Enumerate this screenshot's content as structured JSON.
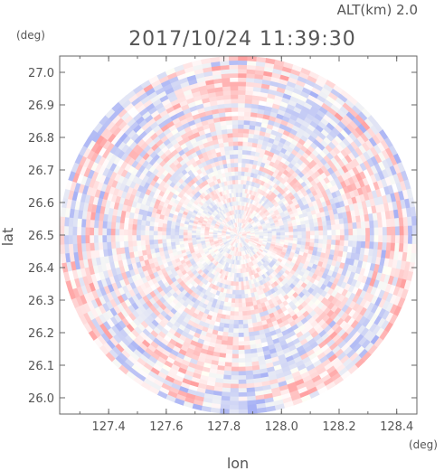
{
  "header": {
    "altitude_label": "ALT(km) 2.0",
    "timestamp": "2017/10/24 11:39:30"
  },
  "chart_data": {
    "type": "heatmap",
    "xlabel": "lon",
    "ylabel": "lat",
    "x_unit": "(deg)",
    "y_unit": "(deg)",
    "xlim": [
      127.23,
      128.47
    ],
    "ylim": [
      25.95,
      27.05
    ],
    "x_ticks": [
      "127.4",
      "127.6",
      "127.8",
      "128.0",
      "128.2",
      "128.4"
    ],
    "y_ticks": [
      "26.0",
      "26.1",
      "26.2",
      "26.3",
      "26.4",
      "26.5",
      "26.6",
      "26.7",
      "26.8",
      "26.9",
      "27.0"
    ],
    "center": {
      "lon": 127.85,
      "lat": 26.5
    },
    "radius_deg": {
      "lon": 0.62,
      "lat": 0.55
    },
    "colors": {
      "positive": "#f5a8a8",
      "negative": "#a8b2f0",
      "neutral": "#ffffff",
      "axis": "#555555"
    },
    "grid": false,
    "legend": "none"
  }
}
